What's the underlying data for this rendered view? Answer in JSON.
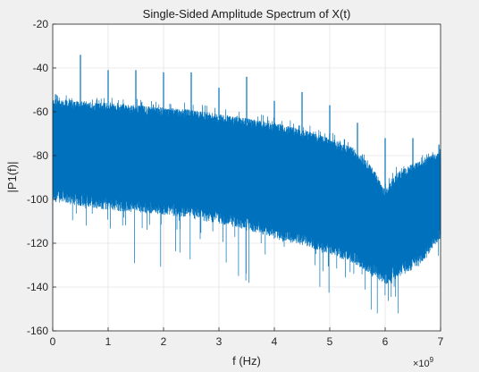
{
  "chart_data": {
    "type": "line",
    "title": "Single-Sided Amplitude Spectrum of X(t)",
    "xlabel": "f (Hz)",
    "ylabel": "|P1(f)|",
    "x_exponent_label": "×10",
    "x_exponent_power": "9",
    "xlim": [
      0,
      7
    ],
    "ylim": [
      -160,
      -20
    ],
    "x_ticks": [
      0,
      1,
      2,
      3,
      4,
      5,
      6,
      7
    ],
    "x_tick_labels": [
      "0",
      "1",
      "2",
      "3",
      "4",
      "5",
      "6",
      "7"
    ],
    "y_ticks": [
      -160,
      -140,
      -120,
      -100,
      -80,
      -60,
      -40,
      -20
    ],
    "y_tick_labels": [
      "-160",
      "-140",
      "-120",
      "-100",
      "-80",
      "-60",
      "-40",
      "-20"
    ],
    "grid": true,
    "series_color": "#0072bd",
    "series": [
      {
        "upper_envelope": {
          "x": [
            0,
            0.5,
            1,
            1.5,
            2,
            2.5,
            3,
            3.5,
            4,
            4.5,
            5,
            5.4,
            5.8,
            6.0,
            6.2,
            6.6,
            7.0
          ],
          "y": [
            -56,
            -57,
            -58,
            -59,
            -60,
            -61,
            -63,
            -65,
            -67,
            -70,
            -74,
            -78,
            -88,
            -98,
            -90,
            -84,
            -80
          ]
        },
        "lower_envelope": {
          "x": [
            0,
            0.5,
            1,
            1.5,
            2,
            2.5,
            3,
            3.5,
            4,
            4.5,
            5,
            5.4,
            5.8,
            6.0,
            6.2,
            6.6,
            7.0
          ],
          "y": [
            -98,
            -100,
            -102,
            -103,
            -104,
            -106,
            -108,
            -111,
            -115,
            -118,
            -122,
            -126,
            -132,
            -136,
            -133,
            -128,
            -115
          ]
        },
        "peaks": {
          "x": [
            0.05,
            0.5,
            1.0,
            1.5,
            2.0,
            2.5,
            3.0,
            3.5,
            4.0,
            4.5,
            5.0,
            5.5,
            6.0,
            6.5,
            6.97
          ],
          "y": [
            -52,
            -34,
            -41,
            -41,
            -42,
            -42,
            -49,
            -44,
            -55,
            -51,
            -57,
            -65,
            -72,
            -72,
            -75
          ]
        },
        "min_noise_level": -152
      }
    ]
  }
}
